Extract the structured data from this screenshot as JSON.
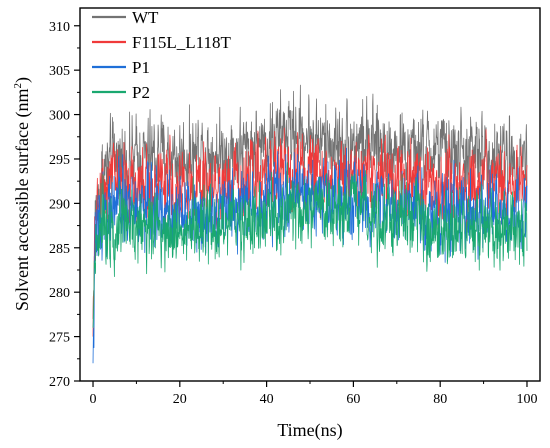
{
  "chart_data": {
    "type": "line",
    "title": "",
    "xlabel": "Time(ns)",
    "ylabel_main": "Solvent accessible surface (nm",
    "ylabel_sup": "2",
    "ylabel_close": ")",
    "xlim": [
      -3,
      103
    ],
    "ylim": [
      270,
      312
    ],
    "xticks": [
      0,
      20,
      40,
      60,
      80,
      100
    ],
    "yticks": [
      270,
      275,
      280,
      285,
      290,
      295,
      300,
      305,
      310
    ],
    "grid": false,
    "legend_position": "top-left",
    "series": [
      {
        "name": "WT",
        "color": "#737373",
        "start": 277,
        "keypoints": [
          [
            0,
            277
          ],
          [
            0.5,
            288
          ],
          [
            2,
            293
          ],
          [
            5,
            295
          ],
          [
            10,
            295
          ],
          [
            15,
            295.5
          ],
          [
            20,
            295
          ],
          [
            25,
            296
          ],
          [
            30,
            295.5
          ],
          [
            35,
            296
          ],
          [
            40,
            297
          ],
          [
            45,
            298
          ],
          [
            50,
            297.5
          ],
          [
            55,
            296.5
          ],
          [
            60,
            297
          ],
          [
            65,
            296.5
          ],
          [
            70,
            296
          ],
          [
            75,
            295.5
          ],
          [
            80,
            296
          ],
          [
            85,
            295.5
          ],
          [
            90,
            295.5
          ],
          [
            95,
            295
          ],
          [
            100,
            295.5
          ]
        ],
        "noise": 3.2
      },
      {
        "name": "F115L_L118T",
        "color": "#f03a3a",
        "start": 275,
        "keypoints": [
          [
            0,
            275
          ],
          [
            0.5,
            287
          ],
          [
            2,
            292
          ],
          [
            5,
            293
          ],
          [
            10,
            292
          ],
          [
            15,
            292
          ],
          [
            20,
            291.5
          ],
          [
            25,
            292
          ],
          [
            30,
            292
          ],
          [
            35,
            293
          ],
          [
            40,
            293.5
          ],
          [
            45,
            294
          ],
          [
            50,
            294
          ],
          [
            55,
            293
          ],
          [
            60,
            293.5
          ],
          [
            65,
            293
          ],
          [
            70,
            292.5
          ],
          [
            75,
            292
          ],
          [
            80,
            292
          ],
          [
            85,
            292
          ],
          [
            90,
            292
          ],
          [
            95,
            292
          ],
          [
            100,
            292
          ]
        ],
        "noise": 3.0
      },
      {
        "name": "P1",
        "color": "#1f6fd8",
        "start": 272,
        "keypoints": [
          [
            0,
            272
          ],
          [
            0.5,
            285
          ],
          [
            2,
            289
          ],
          [
            5,
            290
          ],
          [
            10,
            289.5
          ],
          [
            15,
            289.5
          ],
          [
            20,
            289
          ],
          [
            25,
            289
          ],
          [
            30,
            289.5
          ],
          [
            35,
            290
          ],
          [
            40,
            290.5
          ],
          [
            45,
            291
          ],
          [
            50,
            291
          ],
          [
            55,
            290.5
          ],
          [
            60,
            290.5
          ],
          [
            65,
            290
          ],
          [
            70,
            289.5
          ],
          [
            75,
            289
          ],
          [
            80,
            289
          ],
          [
            85,
            288.5
          ],
          [
            90,
            288.5
          ],
          [
            95,
            288.5
          ],
          [
            100,
            288.5
          ]
        ],
        "noise": 3.0
      },
      {
        "name": "P2",
        "color": "#1aa870",
        "start": 276,
        "keypoints": [
          [
            0,
            276
          ],
          [
            0.5,
            286
          ],
          [
            2,
            288
          ],
          [
            5,
            288
          ],
          [
            10,
            287.5
          ],
          [
            15,
            287.5
          ],
          [
            20,
            287
          ],
          [
            25,
            287
          ],
          [
            30,
            287.5
          ],
          [
            35,
            288
          ],
          [
            40,
            288
          ],
          [
            45,
            288.5
          ],
          [
            50,
            289
          ],
          [
            55,
            288.5
          ],
          [
            60,
            289
          ],
          [
            65,
            289
          ],
          [
            70,
            288.5
          ],
          [
            75,
            288
          ],
          [
            80,
            287
          ],
          [
            85,
            287
          ],
          [
            90,
            287
          ],
          [
            95,
            287
          ],
          [
            100,
            287
          ]
        ],
        "noise": 3.0
      }
    ]
  }
}
